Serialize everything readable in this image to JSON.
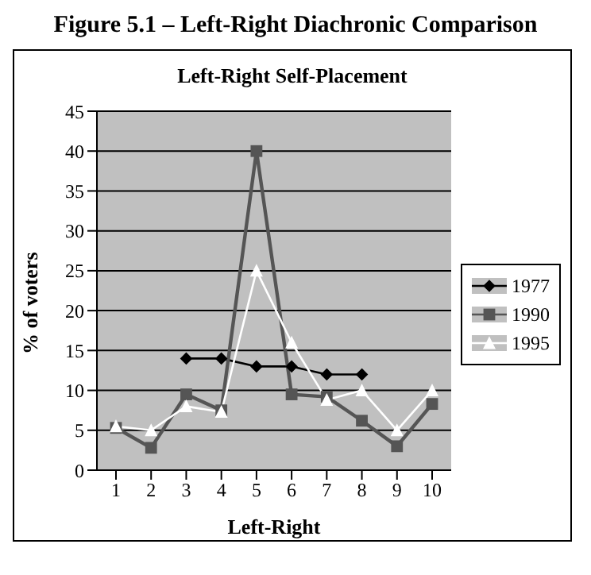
{
  "chart_data": {
    "type": "line",
    "title": "Figure 5.1 – Left-Right Diachronic Comparison",
    "subtitle": "Left-Right Self-Placement",
    "xlabel": "Left-Right",
    "ylabel": "% of voters",
    "categories": [
      "1",
      "2",
      "3",
      "4",
      "5",
      "6",
      "7",
      "8",
      "9",
      "10"
    ],
    "series": [
      {
        "name": "1977",
        "color": "#000000",
        "marker": "diamond",
        "values": [
          null,
          null,
          14,
          14,
          13,
          13,
          12,
          12,
          null,
          null
        ]
      },
      {
        "name": "1990",
        "color": "#555555",
        "marker": "square",
        "values": [
          5.3,
          2.8,
          9.5,
          7.5,
          40,
          9.5,
          9.2,
          6.2,
          3,
          8.3
        ]
      },
      {
        "name": "1995",
        "color": "#ffffff",
        "marker": "triangle",
        "values": [
          5.5,
          5,
          8,
          7.3,
          25,
          16,
          8.8,
          10,
          5,
          10
        ]
      }
    ],
    "ylim": [
      0,
      45
    ],
    "yticks": [
      0,
      5,
      10,
      15,
      20,
      25,
      30,
      35,
      40,
      45
    ],
    "grid": "y",
    "legend": "right"
  }
}
